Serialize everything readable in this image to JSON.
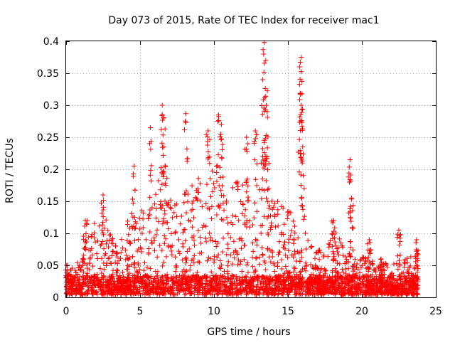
{
  "chart_data": {
    "type": "scatter",
    "title": "Day 073 of 2015, Rate Of TEC Index for receiver mac1",
    "xlabel": "GPS time / hours",
    "ylabel": "ROTI / TECUs",
    "xlim": [
      0,
      25
    ],
    "ylim": [
      0,
      0.4
    ],
    "x_ticks": [
      0,
      5,
      10,
      15,
      20,
      25
    ],
    "y_ticks": [
      0,
      0.05,
      0.1,
      0.15,
      0.2,
      0.25,
      0.3,
      0.35,
      0.4
    ],
    "x_tick_labels": [
      "0",
      "5",
      "10",
      "15",
      "20",
      "25"
    ],
    "y_tick_labels": [
      "0",
      "0.05",
      "0.1",
      "0.15",
      "0.2",
      "0.25",
      "0.3",
      "0.35",
      "0.4"
    ],
    "grid": true,
    "marker": "plus",
    "color": "#ff0000",
    "x_extent": [
      0,
      23.8
    ],
    "notable_points": [
      {
        "x": 0.1,
        "y": 0.05
      },
      {
        "x": 1.3,
        "y": 0.12
      },
      {
        "x": 2.5,
        "y": 0.16
      },
      {
        "x": 4.6,
        "y": 0.205
      },
      {
        "x": 5.7,
        "y": 0.265
      },
      {
        "x": 6.5,
        "y": 0.3
      },
      {
        "x": 6.6,
        "y": 0.28
      },
      {
        "x": 8.1,
        "y": 0.287
      },
      {
        "x": 9.6,
        "y": 0.26
      },
      {
        "x": 10.3,
        "y": 0.285
      },
      {
        "x": 10.5,
        "y": 0.27
      },
      {
        "x": 12.2,
        "y": 0.25
      },
      {
        "x": 12.8,
        "y": 0.26
      },
      {
        "x": 13.4,
        "y": 0.398
      },
      {
        "x": 13.5,
        "y": 0.37
      },
      {
        "x": 13.3,
        "y": 0.34
      },
      {
        "x": 13.6,
        "y": 0.29
      },
      {
        "x": 15.8,
        "y": 0.36
      },
      {
        "x": 15.9,
        "y": 0.375
      },
      {
        "x": 15.9,
        "y": 0.3
      },
      {
        "x": 16.0,
        "y": 0.235
      },
      {
        "x": 18.1,
        "y": 0.12
      },
      {
        "x": 19.2,
        "y": 0.215
      },
      {
        "x": 19.3,
        "y": 0.155
      },
      {
        "x": 20.5,
        "y": 0.09
      },
      {
        "x": 21.3,
        "y": 0.06
      },
      {
        "x": 22.5,
        "y": 0.105
      },
      {
        "x": 23.7,
        "y": 0.09
      }
    ],
    "envelope": [
      {
        "x": 0,
        "y": 0.03
      },
      {
        "x": 1,
        "y": 0.06
      },
      {
        "x": 1.5,
        "y": 0.1
      },
      {
        "x": 2.5,
        "y": 0.13
      },
      {
        "x": 3.5,
        "y": 0.07
      },
      {
        "x": 4.5,
        "y": 0.14
      },
      {
        "x": 5.5,
        "y": 0.13
      },
      {
        "x": 6.5,
        "y": 0.2
      },
      {
        "x": 7.5,
        "y": 0.15
      },
      {
        "x": 8.5,
        "y": 0.17
      },
      {
        "x": 9.5,
        "y": 0.2
      },
      {
        "x": 10.5,
        "y": 0.2
      },
      {
        "x": 11.5,
        "y": 0.18
      },
      {
        "x": 12.5,
        "y": 0.17
      },
      {
        "x": 13.5,
        "y": 0.17
      },
      {
        "x": 14.5,
        "y": 0.14
      },
      {
        "x": 15.5,
        "y": 0.13
      },
      {
        "x": 16.5,
        "y": 0.08
      },
      {
        "x": 17.5,
        "y": 0.07
      },
      {
        "x": 18.2,
        "y": 0.1
      },
      {
        "x": 19,
        "y": 0.07
      },
      {
        "x": 20,
        "y": 0.06
      },
      {
        "x": 21,
        "y": 0.05
      },
      {
        "x": 22,
        "y": 0.05
      },
      {
        "x": 23,
        "y": 0.06
      },
      {
        "x": 23.8,
        "y": 0.07
      }
    ],
    "num_generated_points": 3000
  }
}
